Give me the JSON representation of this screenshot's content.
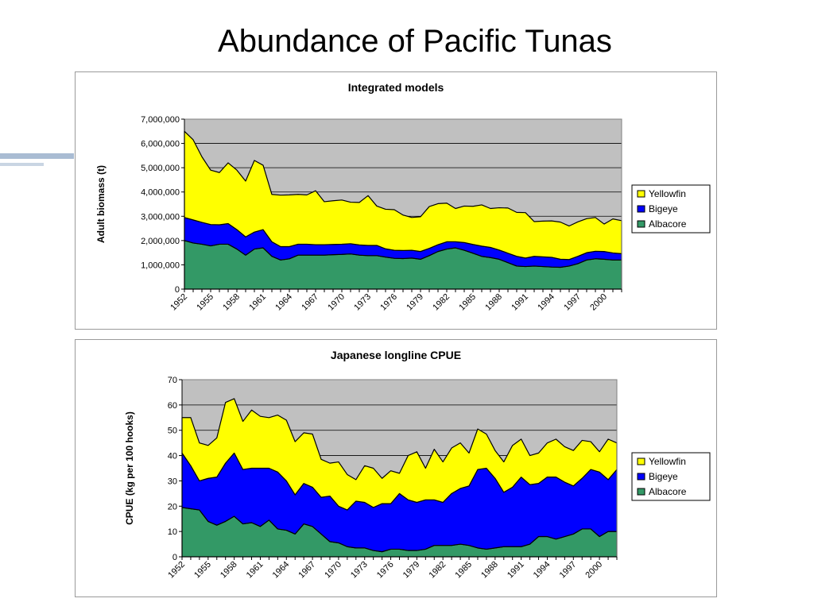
{
  "slide": {
    "title": "Abundance of Pacific Tunas"
  },
  "charts": [
    {
      "title": "Integrated models",
      "ylabel": "Adult biomass (t)",
      "chart_data": {
        "type": "area",
        "stacked": true,
        "title": "Integrated models",
        "ylabel": "Adult biomass (t)",
        "xlabel": "",
        "ylim": [
          0,
          7000000
        ],
        "yticks": [
          0,
          1000000,
          2000000,
          3000000,
          4000000,
          5000000,
          6000000,
          7000000
        ],
        "ytick_labels": [
          "0",
          "1,000,000",
          "2,000,000",
          "3,000,000",
          "4,000,000",
          "5,000,000",
          "6,000,000",
          "7,000,000"
        ],
        "x": [
          1952,
          1953,
          1954,
          1955,
          1956,
          1957,
          1958,
          1959,
          1960,
          1961,
          1962,
          1963,
          1964,
          1965,
          1966,
          1967,
          1968,
          1969,
          1970,
          1971,
          1972,
          1973,
          1974,
          1975,
          1976,
          1977,
          1978,
          1979,
          1980,
          1981,
          1982,
          1983,
          1984,
          1985,
          1986,
          1987,
          1988,
          1989,
          1990,
          1991,
          1992,
          1993,
          1994,
          1995,
          1996,
          1997,
          1998,
          1999,
          2000,
          2001,
          2002
        ],
        "xtick_labels": [
          "1952",
          "1955",
          "1958",
          "1961",
          "1964",
          "1967",
          "1970",
          "1973",
          "1976",
          "1979",
          "1982",
          "1985",
          "1988",
          "1991",
          "1994",
          "1997",
          "2000"
        ],
        "series": [
          {
            "name": "Albacore",
            "color": "#339966",
            "values": [
              2000000,
              1900000,
              1850000,
              1780000,
              1850000,
              1850000,
              1650000,
              1400000,
              1650000,
              1700000,
              1350000,
              1200000,
              1250000,
              1400000,
              1400000,
              1400000,
              1400000,
              1420000,
              1430000,
              1450000,
              1400000,
              1380000,
              1380000,
              1320000,
              1270000,
              1260000,
              1280000,
              1230000,
              1380000,
              1550000,
              1650000,
              1700000,
              1600000,
              1480000,
              1350000,
              1300000,
              1230000,
              1090000,
              950000,
              930000,
              950000,
              930000,
              910000,
              900000,
              950000,
              1050000,
              1200000,
              1250000,
              1230000,
              1200000,
              1200000
            ]
          },
          {
            "name": "Bigeye",
            "color": "#0000ff",
            "values": [
              950000,
              950000,
              900000,
              880000,
              800000,
              850000,
              800000,
              750000,
              700000,
              750000,
              600000,
              550000,
              500000,
              450000,
              450000,
              430000,
              430000,
              420000,
              420000,
              420000,
              420000,
              420000,
              420000,
              340000,
              330000,
              330000,
              320000,
              320000,
              300000,
              280000,
              300000,
              250000,
              320000,
              360000,
              420000,
              420000,
              380000,
              390000,
              400000,
              350000,
              400000,
              400000,
              400000,
              330000,
              270000,
              300000,
              300000,
              310000,
              320000,
              290000,
              260000
            ]
          },
          {
            "name": "Yellowfin",
            "color": "#ffff00",
            "values": [
              3550000,
              3300000,
              2700000,
              2240000,
              2150000,
              2500000,
              2450000,
              2300000,
              2950000,
              2650000,
              1950000,
              2120000,
              2130000,
              2050000,
              2030000,
              2220000,
              1770000,
              1800000,
              1820000,
              1710000,
              1750000,
              2050000,
              1620000,
              1630000,
              1670000,
              1460000,
              1350000,
              1430000,
              1720000,
              1690000,
              1590000,
              1370000,
              1500000,
              1570000,
              1700000,
              1600000,
              1740000,
              1860000,
              1810000,
              1870000,
              1430000,
              1470000,
              1500000,
              1530000,
              1380000,
              1420000,
              1400000,
              1390000,
              1130000,
              1400000,
              1360000
            ]
          }
        ]
      }
    },
    {
      "title": "Japanese longline CPUE",
      "ylabel": "CPUE (kg per 100 hooks)",
      "chart_data": {
        "type": "area",
        "stacked": true,
        "title": "Japanese longline CPUE",
        "ylabel": "CPUE (kg per 100 hooks)",
        "xlabel": "",
        "ylim": [
          0,
          70
        ],
        "yticks": [
          0,
          10,
          20,
          30,
          40,
          50,
          60,
          70
        ],
        "ytick_labels": [
          "0",
          "10",
          "20",
          "30",
          "40",
          "50",
          "60",
          "70"
        ],
        "x": [
          1952,
          1953,
          1954,
          1955,
          1956,
          1957,
          1958,
          1959,
          1960,
          1961,
          1962,
          1963,
          1964,
          1965,
          1966,
          1967,
          1968,
          1969,
          1970,
          1971,
          1972,
          1973,
          1974,
          1975,
          1976,
          1977,
          1978,
          1979,
          1980,
          1981,
          1982,
          1983,
          1984,
          1985,
          1986,
          1987,
          1988,
          1989,
          1990,
          1991,
          1992,
          1993,
          1994,
          1995,
          1996,
          1997,
          1998,
          1999,
          2000,
          2001,
          2002
        ],
        "xtick_labels": [
          "1952",
          "1955",
          "1958",
          "1961",
          "1964",
          "1967",
          "1970",
          "1973",
          "1976",
          "1979",
          "1982",
          "1985",
          "1988",
          "1991",
          "1994",
          "1997",
          "2000"
        ],
        "series": [
          {
            "name": "Albacore",
            "color": "#339966",
            "values": [
              19.5,
              19,
              18.5,
              14,
              12.5,
              14,
              16,
              13,
              13.5,
              12,
              14.5,
              11,
              10.5,
              9,
              13,
              12,
              9,
              6,
              5.5,
              4,
              3.5,
              3.5,
              2.5,
              2,
              3,
              3,
              2.5,
              2.5,
              3,
              4.5,
              4.5,
              4.5,
              5,
              4.5,
              3.5,
              3,
              3.5,
              4,
              4,
              4,
              5,
              8,
              8,
              7,
              8,
              9,
              11,
              11,
              8,
              10,
              10
            ]
          },
          {
            "name": "Bigeye",
            "color": "#0000ff",
            "values": [
              21.5,
              17,
              11.5,
              17,
              19,
              23,
              25,
              21.5,
              21.5,
              23,
              20.5,
              22.5,
              19.5,
              15.5,
              16,
              15.5,
              14.5,
              18,
              14.5,
              14.5,
              18.5,
              18,
              17,
              19,
              18,
              22,
              20,
              19,
              19.5,
              18,
              17,
              20.5,
              22,
              23.5,
              31,
              32,
              27.5,
              21.5,
              23.5,
              27.5,
              23.5,
              21,
              23.5,
              24.5,
              21.5,
              19,
              20,
              23.5,
              25.5,
              20.5,
              24.5
            ]
          },
          {
            "name": "Yellowfin",
            "color": "#ffff00",
            "values": [
              14,
              19,
              15,
              13,
              15.5,
              24,
              21.5,
              19,
              23,
              20.5,
              20,
              22.5,
              24,
              21,
              20,
              21,
              15,
              13,
              17.5,
              14,
              8.5,
              14.5,
              15.5,
              10,
              13,
              8,
              17.5,
              20,
              12.5,
              20,
              16,
              18,
              18,
              13,
              16,
              13.5,
              11,
              12,
              16.5,
              15,
              11.5,
              12,
              13.5,
              15,
              14,
              14,
              15,
              11,
              8,
              16,
              10.5
            ]
          }
        ]
      }
    }
  ]
}
